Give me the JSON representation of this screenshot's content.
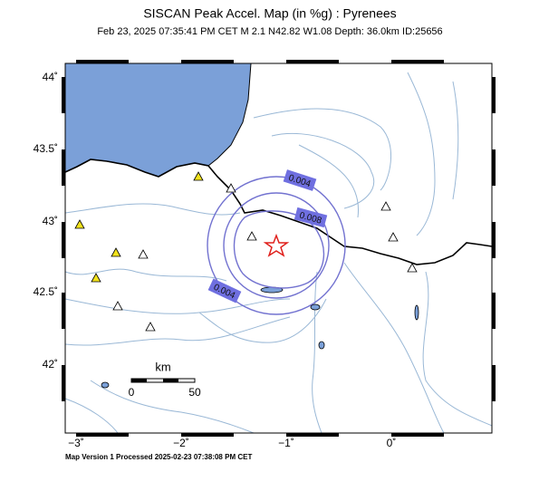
{
  "header": {
    "title": "SISCAN Peak Accel. Map (in %g) : Pyrenees",
    "subtitle": "Feb 23, 2025 07:35:41 PM CET   M 2.1   N42.82 W1.08   Depth: 36.0km   ID:25656"
  },
  "axes": {
    "lat_labels": [
      "44˚",
      "43.5˚",
      "43˚",
      "42.5˚",
      "42˚"
    ],
    "lon_labels": [
      "−3˚",
      "−2˚",
      "−1˚",
      "0˚"
    ]
  },
  "contours": {
    "labels": [
      "0.004",
      "0.008",
      "0.004"
    ]
  },
  "scale_bar": {
    "unit": "km",
    "left": "0",
    "right": "50"
  },
  "footer": "Map Version 1 Processed 2025-02-23 07:38:08 PM CET"
}
